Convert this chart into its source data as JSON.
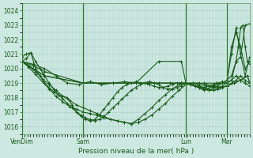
{
  "xlabel": "Pression niveau de la mer( hPa )",
  "ylim": [
    1015.5,
    1024.5
  ],
  "yticks": [
    1016,
    1017,
    1018,
    1019,
    1020,
    1021,
    1022,
    1023,
    1024
  ],
  "bg_color": "#cce8e0",
  "grid_color": "#aacccc",
  "line_color": "#1a5c1a",
  "xtick_labels": [
    "VenDim",
    "Sam",
    "Lun",
    "Mar"
  ],
  "xtick_pos": [
    0.0,
    0.27,
    0.72,
    0.9
  ],
  "series": [
    {
      "x": [
        0.0,
        0.02,
        0.04,
        0.06,
        0.08,
        0.1,
        0.12,
        0.14,
        0.16,
        0.18,
        0.2,
        0.22,
        0.24,
        0.26,
        0.28,
        0.3,
        0.32,
        0.34,
        0.36,
        0.38,
        0.4,
        0.42,
        0.44,
        0.46,
        0.48,
        0.5,
        0.52,
        0.54,
        0.56,
        0.58,
        0.6,
        0.62,
        0.64,
        0.66,
        0.68,
        0.7,
        0.72,
        0.74,
        0.76,
        0.78,
        0.8,
        0.82,
        0.84,
        0.86,
        0.88,
        0.9,
        0.92,
        0.94,
        0.96,
        0.98,
        1.0
      ],
      "y": [
        1020.5,
        1020.7,
        1021.1,
        1020.0,
        1019.5,
        1019.0,
        1018.7,
        1018.4,
        1018.2,
        1018.1,
        1018.0,
        1017.5,
        1017.0,
        1016.7,
        1016.5,
        1016.4,
        1016.5,
        1016.8,
        1017.2,
        1017.6,
        1018.0,
        1018.4,
        1018.7,
        1018.9,
        1019.0,
        1019.1,
        1019.0,
        1019.0,
        1018.9,
        1018.8,
        1018.7,
        1018.7,
        1018.8,
        1018.9,
        1019.0,
        1019.0,
        1019.0,
        1018.9,
        1018.8,
        1018.7,
        1018.7,
        1018.8,
        1018.9,
        1019.0,
        1019.1,
        1019.0,
        1019.2,
        1019.5,
        1019.2,
        1019.0,
        1018.8
      ]
    },
    {
      "x": [
        0.0,
        0.02,
        0.04,
        0.06,
        0.08,
        0.1,
        0.12,
        0.14,
        0.16,
        0.18,
        0.2,
        0.22,
        0.24,
        0.26,
        0.28,
        0.3,
        0.32,
        0.34,
        0.36,
        0.38,
        0.4,
        0.42,
        0.44,
        0.46,
        0.48,
        0.5,
        0.52,
        0.54,
        0.56,
        0.58,
        0.6,
        0.62,
        0.64,
        0.66,
        0.68,
        0.7,
        0.72,
        0.74,
        0.76,
        0.78,
        0.8,
        0.82,
        0.84,
        0.86,
        0.88,
        0.9,
        0.92,
        0.94,
        0.96,
        0.98,
        1.0
      ],
      "y": [
        1020.8,
        1021.0,
        1021.1,
        1020.5,
        1020.0,
        1019.5,
        1019.0,
        1018.6,
        1018.2,
        1017.9,
        1017.6,
        1017.3,
        1017.0,
        1016.8,
        1016.6,
        1016.5,
        1016.4,
        1016.5,
        1016.7,
        1017.0,
        1017.3,
        1017.6,
        1017.9,
        1018.2,
        1018.5,
        1018.7,
        1018.9,
        1019.0,
        1019.1,
        1019.0,
        1018.9,
        1018.7,
        1018.6,
        1018.6,
        1018.7,
        1018.8,
        1019.0,
        1018.9,
        1018.8,
        1018.7,
        1018.6,
        1018.5,
        1018.5,
        1018.6,
        1018.7,
        1018.8,
        1019.0,
        1019.2,
        1019.5,
        1019.2,
        1019.0
      ]
    },
    {
      "x": [
        0.0,
        0.03,
        0.06,
        0.09,
        0.12,
        0.15,
        0.18,
        0.21,
        0.24,
        0.27,
        0.3,
        0.33,
        0.36,
        0.39,
        0.42,
        0.45,
        0.48,
        0.51,
        0.54,
        0.57,
        0.6,
        0.63,
        0.66,
        0.69,
        0.72,
        0.75,
        0.78,
        0.81,
        0.84,
        0.87,
        0.9,
        0.93,
        0.96,
        0.99,
        1.0
      ],
      "y": [
        1020.5,
        1020.2,
        1019.8,
        1019.3,
        1018.9,
        1018.5,
        1018.1,
        1017.8,
        1017.5,
        1017.3,
        1017.1,
        1016.9,
        1016.7,
        1016.5,
        1016.4,
        1016.3,
        1016.2,
        1016.5,
        1016.9,
        1017.3,
        1017.8,
        1018.2,
        1018.6,
        1018.9,
        1019.0,
        1019.0,
        1018.9,
        1018.8,
        1018.7,
        1018.7,
        1018.8,
        1019.0,
        1019.2,
        1019.5,
        1019.0
      ]
    },
    {
      "x": [
        0.0,
        0.03,
        0.06,
        0.09,
        0.12,
        0.15,
        0.18,
        0.21,
        0.24,
        0.27,
        0.3,
        0.33,
        0.36,
        0.39,
        0.42,
        0.45,
        0.48,
        0.51,
        0.54,
        0.57,
        0.6,
        0.63,
        0.66,
        0.69,
        0.72,
        0.75,
        0.78,
        0.81,
        0.84,
        0.87,
        0.9,
        0.93,
        0.96,
        0.99,
        1.0
      ],
      "y": [
        1020.5,
        1020.1,
        1019.6,
        1019.1,
        1018.6,
        1018.1,
        1017.7,
        1017.4,
        1017.2,
        1017.0,
        1016.9,
        1016.8,
        1016.6,
        1016.5,
        1016.4,
        1016.3,
        1016.2,
        1016.3,
        1016.5,
        1016.8,
        1017.2,
        1017.6,
        1018.1,
        1018.5,
        1018.9,
        1019.0,
        1019.0,
        1018.9,
        1018.8,
        1018.7,
        1018.8,
        1019.0,
        1019.2,
        1019.5,
        1019.0
      ]
    },
    {
      "x": [
        0.0,
        0.05,
        0.1,
        0.15,
        0.2,
        0.25,
        0.27,
        0.3,
        0.35,
        0.4,
        0.45,
        0.5,
        0.55,
        0.6,
        0.65,
        0.7,
        0.72,
        0.75,
        0.8,
        0.85,
        0.9,
        0.92,
        0.94,
        0.96,
        0.98,
        1.0
      ],
      "y": [
        1020.5,
        1020.3,
        1020.0,
        1019.5,
        1019.0,
        1018.9,
        1019.0,
        1019.1,
        1018.9,
        1019.0,
        1019.1,
        1019.0,
        1019.0,
        1019.0,
        1019.0,
        1019.0,
        1019.0,
        1019.0,
        1019.0,
        1019.0,
        1019.0,
        1019.2,
        1020.5,
        1020.8,
        1023.0,
        1023.1
      ]
    },
    {
      "x": [
        0.0,
        0.05,
        0.1,
        0.27,
        0.4,
        0.5,
        0.6,
        0.7,
        0.72,
        0.78,
        0.84,
        0.88,
        0.9,
        0.92,
        0.94,
        0.96,
        0.98,
        1.0
      ],
      "y": [
        1020.5,
        1020.0,
        1019.5,
        1019.0,
        1019.0,
        1019.0,
        1020.5,
        1020.5,
        1019.0,
        1018.8,
        1018.5,
        1018.8,
        1019.0,
        1021.5,
        1022.5,
        1021.5,
        1020.0,
        1020.5
      ]
    },
    {
      "x": [
        0.0,
        0.05,
        0.1,
        0.27,
        0.4,
        0.55,
        0.65,
        0.7,
        0.72,
        0.76,
        0.8,
        0.84,
        0.88,
        0.9,
        0.92,
        0.94,
        0.96,
        0.98,
        1.0
      ],
      "y": [
        1020.5,
        1020.0,
        1019.5,
        1019.0,
        1019.0,
        1019.0,
        1019.0,
        1019.0,
        1019.0,
        1018.8,
        1018.5,
        1018.8,
        1019.0,
        1019.2,
        1021.0,
        1022.8,
        1021.0,
        1019.5,
        1020.8
      ]
    },
    {
      "x": [
        0.0,
        0.05,
        0.1,
        0.27,
        0.4,
        0.55,
        0.65,
        0.7,
        0.72,
        0.76,
        0.82,
        0.86,
        0.88,
        0.9,
        0.92,
        0.94,
        0.95,
        0.96,
        0.97,
        0.98,
        0.99,
        1.0
      ],
      "y": [
        1020.5,
        1020.2,
        1019.8,
        1019.0,
        1019.0,
        1019.0,
        1019.0,
        1019.0,
        1019.0,
        1018.8,
        1018.5,
        1018.8,
        1019.0,
        1019.2,
        1019.5,
        1020.5,
        1021.5,
        1022.8,
        1023.0,
        1021.5,
        1020.5,
        1020.3
      ]
    }
  ]
}
